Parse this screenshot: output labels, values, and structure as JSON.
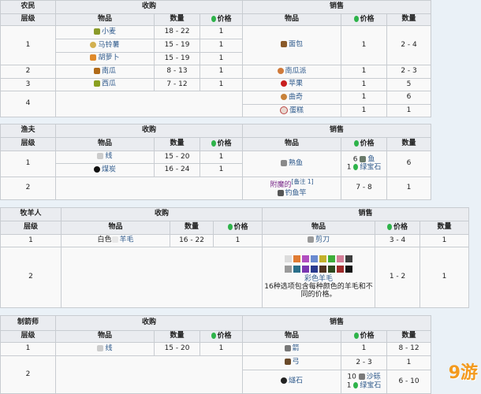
{
  "common": {
    "buy": "收购",
    "sell": "销售",
    "tier": "层级",
    "item": "物品",
    "qty": "数量",
    "price": "价格"
  },
  "farmer": {
    "role": "农民",
    "buy": [
      {
        "tier": "1",
        "item": "小麦",
        "qty": "18 - 22",
        "price": "1"
      },
      {
        "item": "马铃薯",
        "qty": "15 - 19",
        "price": "1"
      },
      {
        "item": "胡萝卜",
        "qty": "15 - 19",
        "price": "1"
      },
      {
        "tier": "2",
        "item": "南瓜",
        "qty": "8 - 13",
        "price": "1"
      },
      {
        "tier": "3",
        "item": "西瓜",
        "qty": "7 - 12",
        "price": "1"
      },
      {
        "tier": "4"
      }
    ],
    "sell": [
      {
        "item": "面包",
        "price": "1",
        "qty": "2 - 4"
      },
      {
        "item": "南瓜派",
        "price": "1",
        "qty": "2 - 3"
      },
      {
        "item": "苹果",
        "price": "1",
        "qty": "5"
      },
      {
        "item": "曲奇",
        "price": "1",
        "qty": "6"
      },
      {
        "item": "蛋糕",
        "price": "1",
        "qty": "1"
      }
    ]
  },
  "fisherman": {
    "role": "渔夫",
    "buy": [
      {
        "tier": "1",
        "item": "线",
        "qty": "15 - 20",
        "price": "1"
      },
      {
        "item": "煤炭",
        "qty": "16 - 24",
        "price": "1"
      },
      {
        "tier": "2"
      }
    ],
    "sell": [
      {
        "item": "熟鱼",
        "price_a_n": "6",
        "price_a": "鱼",
        "price_b_n": "1",
        "price_b": "绿宝石",
        "qty": "6"
      },
      {
        "prefix": "附魔的",
        "note": "[备注 1]",
        "item": "钓鱼竿",
        "price": "7 - 8",
        "qty": "1"
      }
    ]
  },
  "shepherd": {
    "role": "牧羊人",
    "buy": [
      {
        "tier": "1",
        "prefix": "白色",
        "item": "羊毛",
        "qty": "16 - 22",
        "price": "1"
      },
      {
        "tier": "2"
      }
    ],
    "sell": [
      {
        "item": "剪刀",
        "price": "3 - 4",
        "qty": "1"
      },
      {
        "item": "彩色羊毛",
        "desc": "16种选项包含每种颜色的羊毛和不同的价格。",
        "price": "1 - 2",
        "qty": "1"
      }
    ],
    "wool_colors": [
      "#dcdcdc",
      "#e07b33",
      "#b14ec0",
      "#6a8ad0",
      "#c4b12a",
      "#3fae3a",
      "#d47e98",
      "#3e3e3e",
      "#9a9a9a",
      "#2a6f8a",
      "#7a36b0",
      "#2a3a8e",
      "#4f3220",
      "#2f4a20",
      "#9e2a2a",
      "#151515"
    ]
  },
  "fletcher": {
    "role": "制箭师",
    "buy": [
      {
        "tier": "1",
        "item": "线",
        "qty": "15 - 20",
        "price": "1"
      },
      {
        "tier": "2"
      }
    ],
    "sell": [
      {
        "item": "箭",
        "price": "1",
        "qty": "8 - 12"
      },
      {
        "item": "弓",
        "price": "2 - 3",
        "qty": "1"
      },
      {
        "item": "燧石",
        "price_a_n": "10",
        "price_a": "沙砾",
        "price_b_n": "1",
        "price_b": "绿宝石",
        "qty": "6 - 10"
      }
    ]
  },
  "watermark": "9游",
  "colors": {
    "background": "#eaf1f7",
    "link": "#2f5a8c",
    "emerald": "#2eb34a"
  }
}
